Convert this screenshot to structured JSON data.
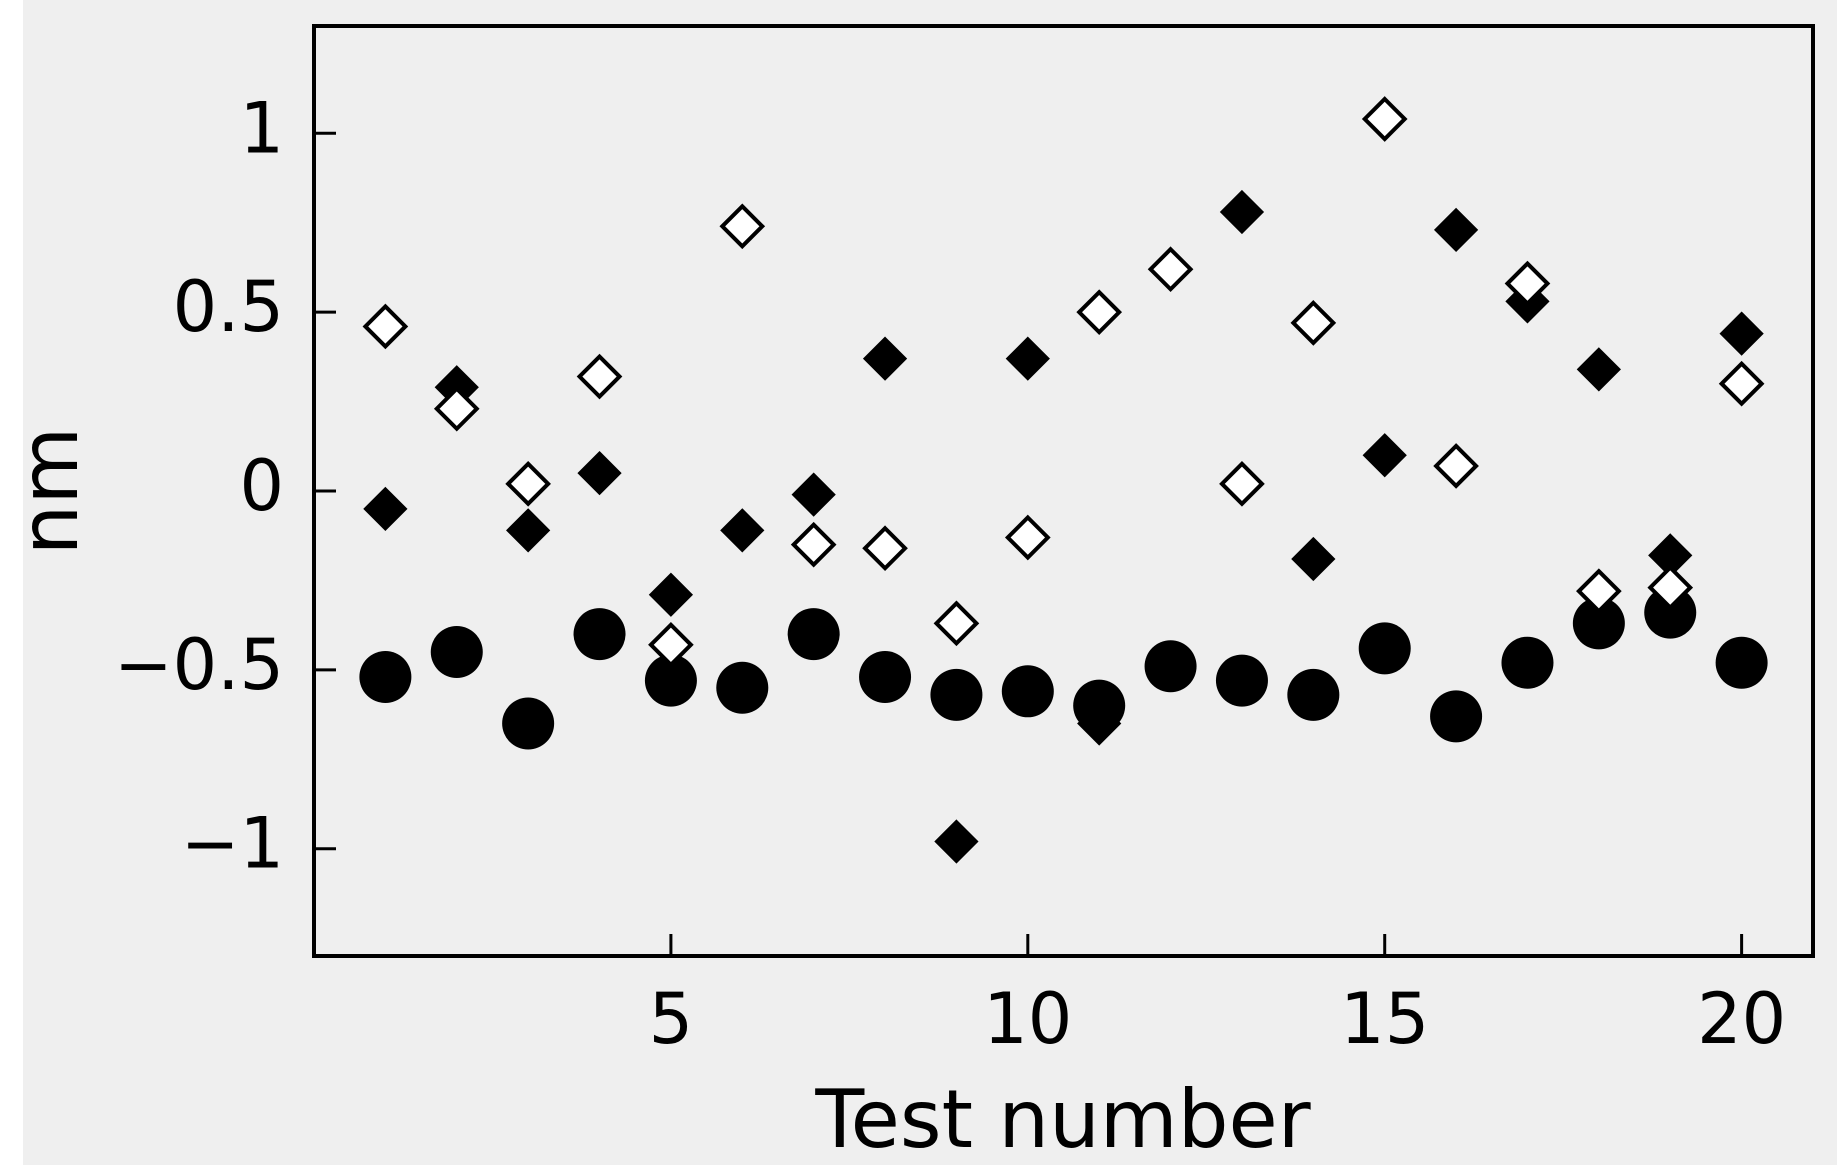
{
  "chart_data": {
    "type": "scatter",
    "x_label": "Test number",
    "y_label": "nm",
    "xlim": [
      0,
      21
    ],
    "ylim": [
      -1.3,
      1.3
    ],
    "xticks": [
      5,
      10,
      15,
      20
    ],
    "yticks": [
      {
        "value": -1,
        "label": "−1"
      },
      {
        "value": -0.5,
        "label": "−0.5"
      },
      0,
      0.5,
      1
    ],
    "x": [
      1,
      2,
      3,
      4,
      5,
      6,
      7,
      8,
      9,
      10,
      11,
      12,
      13,
      14,
      15,
      16,
      17,
      18,
      19,
      20
    ],
    "series": [
      {
        "marker": "circle",
        "color": "#000000",
        "values": [
          -0.52,
          -0.45,
          -0.65,
          -0.4,
          -0.53,
          -0.55,
          -0.4,
          -0.52,
          -0.57,
          -0.56,
          -0.6,
          -0.49,
          -0.53,
          -0.57,
          -0.44,
          -0.63,
          -0.48,
          -0.37,
          -0.34,
          -0.48
        ]
      },
      {
        "marker": "diamond",
        "color": "#000000",
        "values": [
          -0.05,
          0.29,
          -0.11,
          0.05,
          -0.29,
          -0.11,
          -0.01,
          0.37,
          -0.98,
          0.37,
          -0.65,
          -0.5,
          0.78,
          -0.19,
          0.1,
          0.73,
          0.53,
          0.34,
          -0.18,
          0.44
        ]
      },
      {
        "marker": "open-diamond",
        "color": "#000000",
        "values": [
          0.46,
          0.23,
          0.02,
          0.32,
          -0.43,
          0.74,
          -0.15,
          -0.16,
          -0.37,
          -0.13,
          0.5,
          0.62,
          0.02,
          0.47,
          1.04,
          0.07,
          0.58,
          -0.28,
          -0.27,
          0.3
        ]
      }
    ]
  }
}
